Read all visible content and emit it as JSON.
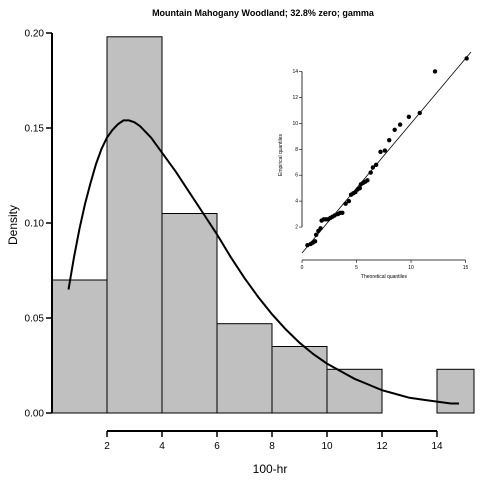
{
  "chart_data": [
    {
      "type": "histogram",
      "title": "Mountain Mahogany Woodland; 32.8% zero; gamma",
      "xlabel": "100-hr",
      "ylabel": "Density",
      "xlim": [
        0,
        15
      ],
      "ylim": [
        0,
        0.2
      ],
      "xticks": [
        2,
        4,
        6,
        8,
        10,
        12,
        14
      ],
      "xtick_labels": [
        "2",
        "4",
        "6",
        "8",
        "10",
        "12",
        "14"
      ],
      "yticks": [
        0,
        0.05,
        0.1,
        0.15,
        0.2
      ],
      "ytick_labels": [
        "0.00",
        "0.05",
        "0.10",
        "0.15",
        "0.20"
      ],
      "bins": [
        {
          "x0": 0,
          "x1": 2,
          "density": 0.07
        },
        {
          "x0": 2,
          "x1": 4,
          "density": 0.198
        },
        {
          "x0": 4,
          "x1": 6,
          "density": 0.105
        },
        {
          "x0": 6,
          "x1": 8,
          "density": 0.047
        },
        {
          "x0": 8,
          "x1": 10,
          "density": 0.035
        },
        {
          "x0": 10,
          "x1": 12,
          "density": 0.023
        },
        {
          "x0": 12,
          "x1": 14,
          "density": 0
        },
        {
          "x0": 14,
          "x1": 16,
          "density": 0.023
        }
      ],
      "bar_color": "#c0c0c0",
      "curve": {
        "name": "gamma density",
        "x": [
          0.6,
          0.8,
          1.0,
          1.2,
          1.4,
          1.6,
          1.8,
          2.0,
          2.2,
          2.4,
          2.6,
          2.8,
          3.0,
          3.2,
          3.4,
          3.6,
          3.8,
          4.0,
          4.5,
          5.0,
          5.5,
          6.0,
          6.5,
          7.0,
          7.5,
          8.0,
          8.5,
          9.0,
          9.5,
          10.0,
          10.5,
          11.0,
          11.5,
          12.0,
          12.5,
          13.0,
          13.5,
          14.0,
          14.5,
          14.8
        ],
        "y": [
          0.065,
          0.082,
          0.097,
          0.11,
          0.121,
          0.131,
          0.139,
          0.145,
          0.149,
          0.152,
          0.154,
          0.154,
          0.153,
          0.151,
          0.148,
          0.145,
          0.141,
          0.137,
          0.127,
          0.116,
          0.105,
          0.094,
          0.082,
          0.071,
          0.061,
          0.052,
          0.044,
          0.037,
          0.031,
          0.026,
          0.022,
          0.018,
          0.015,
          0.012,
          0.01,
          0.008,
          0.007,
          0.006,
          0.005,
          0.005
        ]
      }
    },
    {
      "type": "scatter",
      "title": "",
      "xlabel": "Theoretical quantiles",
      "ylabel": "Empirical quantiles",
      "xlim": [
        0,
        15.5
      ],
      "ylim": [
        0,
        15.5
      ],
      "xticks": [
        0,
        5,
        10,
        15
      ],
      "xtick_labels": [
        "0",
        "5",
        "10",
        "15"
      ],
      "yticks": [
        2,
        4,
        6,
        8,
        10,
        12,
        14
      ],
      "ytick_labels": [
        "2",
        "4",
        "6",
        "8",
        "10",
        "12",
        "14"
      ],
      "reference_line": {
        "x": [
          0,
          15.5
        ],
        "y": [
          0,
          15.5
        ]
      },
      "points": [
        [
          0.5,
          0.6
        ],
        [
          0.8,
          0.7
        ],
        [
          1.0,
          0.8
        ],
        [
          1.2,
          0.9
        ],
        [
          1.3,
          1.4
        ],
        [
          1.5,
          1.7
        ],
        [
          1.7,
          1.9
        ],
        [
          1.8,
          2.5
        ],
        [
          2.0,
          2.6
        ],
        [
          2.2,
          2.6
        ],
        [
          2.4,
          2.6
        ],
        [
          2.6,
          2.7
        ],
        [
          2.8,
          2.8
        ],
        [
          3.0,
          2.9
        ],
        [
          3.3,
          3.0
        ],
        [
          3.5,
          3.1
        ],
        [
          3.7,
          3.1
        ],
        [
          4.0,
          3.8
        ],
        [
          4.3,
          4.0
        ],
        [
          4.5,
          4.5
        ],
        [
          4.7,
          4.6
        ],
        [
          4.9,
          4.7
        ],
        [
          5.1,
          4.9
        ],
        [
          5.3,
          5.0
        ],
        [
          5.4,
          5.3
        ],
        [
          5.6,
          5.4
        ],
        [
          5.8,
          5.5
        ],
        [
          6.0,
          5.6
        ],
        [
          6.3,
          6.2
        ],
        [
          6.5,
          6.6
        ],
        [
          6.8,
          6.8
        ],
        [
          7.2,
          7.8
        ],
        [
          7.6,
          7.9
        ],
        [
          8.0,
          8.7
        ],
        [
          8.5,
          9.5
        ],
        [
          9.0,
          9.9
        ],
        [
          9.8,
          10.5
        ],
        [
          10.8,
          10.8
        ],
        [
          12.2,
          14.0
        ],
        [
          15.1,
          15.0
        ]
      ],
      "point_color": "#000000"
    }
  ]
}
